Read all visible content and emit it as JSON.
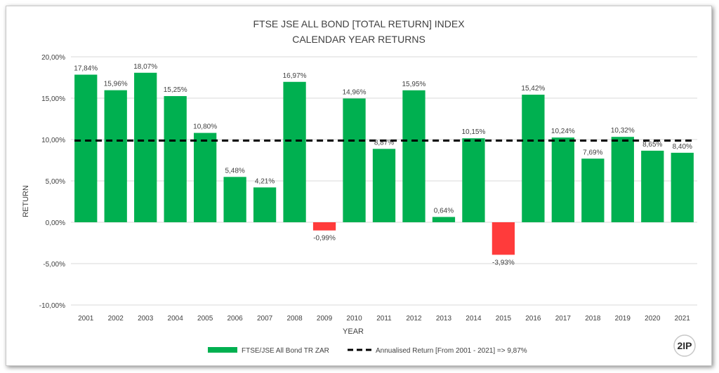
{
  "chart_data": {
    "type": "bar",
    "title": "FTSE JSE ALL BOND [TOTAL RETURN] INDEX",
    "subtitle": "CALENDAR YEAR RETURNS",
    "xlabel": "YEAR",
    "ylabel": "RETURN",
    "ylim": [
      -10,
      20
    ],
    "yticks": [
      20,
      15,
      10,
      5,
      0,
      -5,
      -10
    ],
    "ytick_labels": [
      "20,00%",
      "15,00%",
      "10,00%",
      "5,00%",
      "0,00%",
      "-5,00%",
      "-10,00%"
    ],
    "grid": true,
    "categories": [
      "2001",
      "2002",
      "2003",
      "2004",
      "2005",
      "2006",
      "2007",
      "2008",
      "2009",
      "2010",
      "2011",
      "2012",
      "2013",
      "2014",
      "2015",
      "2016",
      "2017",
      "2018",
      "2019",
      "2020",
      "2021"
    ],
    "series": [
      {
        "name": "FTSE/JSE All Bond TR ZAR",
        "values": [
          17.84,
          15.96,
          18.07,
          15.25,
          10.8,
          5.48,
          4.21,
          16.97,
          -0.99,
          14.96,
          8.87,
          15.95,
          0.64,
          10.15,
          -3.93,
          15.42,
          10.24,
          7.69,
          10.32,
          8.65,
          8.4
        ],
        "value_labels": [
          "17,84%",
          "15,96%",
          "18,07%",
          "15,25%",
          "10,80%",
          "5,48%",
          "4,21%",
          "16,97%",
          "-0,99%",
          "14,96%",
          "8,87%",
          "15,95%",
          "0,64%",
          "10,15%",
          "-3,93%",
          "15,42%",
          "10,24%",
          "7,69%",
          "10,32%",
          "8,65%",
          "8,40%"
        ],
        "color_positive": "#00b050",
        "color_negative": "#ff3b3b"
      }
    ],
    "reference_line": {
      "name": "Annualised Return [From 2001 - 2021] => 9,87%",
      "value": 9.87,
      "style": "dashed",
      "color": "#000000"
    },
    "legend_position": "bottom-center"
  },
  "logo": {
    "text": "2IP"
  },
  "colors": {
    "grid": "#d9d9d9",
    "text": "#404040"
  }
}
